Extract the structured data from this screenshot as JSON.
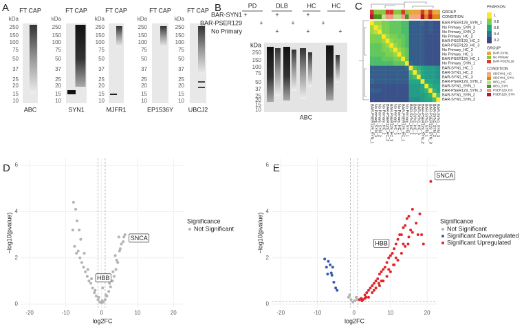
{
  "panel_a": {
    "letter": "A",
    "kda": "kDa",
    "header": "FT CAP",
    "markers": [
      250,
      150,
      100,
      75,
      50,
      37,
      25,
      20,
      15,
      10
    ],
    "blots": [
      "ABC",
      "SYN1",
      "MJFR1",
      "EP1536Y",
      "UBCJ2"
    ]
  },
  "panel_b": {
    "letter": "B",
    "groups": [
      "PD",
      "DLB",
      "HC",
      "HC"
    ],
    "rows": [
      {
        "label": "BAR-SYN1",
        "marks": [
          "+",
          null,
          "+",
          null,
          "+",
          null,
          null
        ]
      },
      {
        "label": "BAR-PSER129",
        "marks": [
          null,
          "+",
          null,
          "+",
          null,
          "+",
          null
        ]
      },
      {
        "label": "No Primary",
        "marks": [
          null,
          null,
          "+",
          null,
          "+",
          null,
          "+"
        ]
      }
    ],
    "kda": "kDa",
    "markers": [
      250,
      150,
      100,
      75,
      50,
      37,
      25,
      20,
      15,
      10
    ],
    "label": "ABC"
  },
  "panel_c": {
    "letter": "C",
    "type": "heatmap",
    "group_title": "GROUP",
    "condition_title": "CONDITION",
    "legend_title": "PEARSON",
    "colorbar": {
      "ticks": [
        1,
        0.8,
        0.6,
        0.4,
        0.2
      ],
      "colors": [
        "#fde725",
        "#7ad151",
        "#22a884",
        "#2a788e",
        "#414487"
      ]
    },
    "groups": [
      {
        "name": "BAR-SYN1",
        "color": "#e8a838"
      },
      {
        "name": "No Primary",
        "color": "#8cc63f"
      },
      {
        "name": "BAR-PSER129",
        "color": "#d8392b"
      }
    ],
    "conditions": [
      {
        "name": "SDSYN1_HC",
        "color": "#f4a582"
      },
      {
        "name": "SDSYN1_SYN",
        "color": "#e08214"
      },
      {
        "name": "NEG_HC",
        "color": "#b8e186"
      },
      {
        "name": "NEG_SYN",
        "color": "#4d9221"
      },
      {
        "name": "PSER129_HC",
        "color": "#f1948a"
      },
      {
        "name": "PSER129_SYN",
        "color": "#b2182b"
      }
    ],
    "samples": [
      {
        "label": "BAR-PSER129_SYN_1",
        "group": "BAR-PSER129",
        "condition": "PSER129_SYN"
      },
      {
        "label": "No Primary_SYN_3",
        "group": "No Primary",
        "condition": "NEG_SYN"
      },
      {
        "label": "No Primary_SYN_2",
        "group": "No Primary",
        "condition": "NEG_SYN"
      },
      {
        "label": "No Primary_HC_2",
        "group": "No Primary",
        "condition": "NEG_HC"
      },
      {
        "label": "BAR-PSER129_HC_2",
        "group": "BAR-PSER129",
        "condition": "PSER129_HC"
      },
      {
        "label": "BAR-PSER129_HC_3",
        "group": "BAR-PSER129",
        "condition": "PSER129_HC"
      },
      {
        "label": "No Primary_HC_3",
        "group": "No Primary",
        "condition": "NEG_HC"
      },
      {
        "label": "No Primary_HC_1",
        "group": "No Primary",
        "condition": "NEG_HC"
      },
      {
        "label": "BAR-PSER129_HC_1",
        "group": "BAR-PSER129",
        "condition": "PSER129_HC"
      },
      {
        "label": "No Primary_SYN_1",
        "group": "No Primary",
        "condition": "NEG_SYN"
      },
      {
        "label": "BAR-SYN1_HC_1",
        "group": "BAR-SYN1",
        "condition": "SDSYN1_HC"
      },
      {
        "label": "BAR-SYN1_HC_2",
        "group": "BAR-SYN1",
        "condition": "SDSYN1_HC"
      },
      {
        "label": "BAR-SYN1_HC_3",
        "group": "BAR-SYN1",
        "condition": "SDSYN1_HC"
      },
      {
        "label": "BAR-PSER129_SYN_2",
        "group": "BAR-PSER129",
        "condition": "PSER129_SYN"
      },
      {
        "label": "BAR-SYN1_SYN_1",
        "group": "BAR-SYN1",
        "condition": "SDSYN1_SYN"
      },
      {
        "label": "BAR-PSER129_SYN_3",
        "group": "BAR-PSER129",
        "condition": "PSER129_SYN"
      },
      {
        "label": "BAR-SYN1_SYN_2",
        "group": "BAR-SYN1",
        "condition": "SDSYN1_SYN"
      },
      {
        "label": "BAR-SYN1_SYN_3",
        "group": "BAR-SYN1",
        "condition": "SDSYN1_SYN"
      }
    ],
    "matrix": [
      [
        1,
        0.85,
        0.85,
        0.8,
        0.8,
        0.75,
        0.75,
        0.75,
        0.7,
        0.7,
        0.3,
        0.3,
        0.3,
        0.35,
        0.25,
        0.3,
        0.25,
        0.25
      ],
      [
        0.85,
        1,
        0.9,
        0.8,
        0.8,
        0.75,
        0.75,
        0.75,
        0.7,
        0.7,
        0.3,
        0.3,
        0.3,
        0.3,
        0.25,
        0.3,
        0.25,
        0.25
      ],
      [
        0.85,
        0.9,
        1,
        0.8,
        0.8,
        0.75,
        0.75,
        0.75,
        0.7,
        0.7,
        0.3,
        0.3,
        0.3,
        0.3,
        0.25,
        0.3,
        0.25,
        0.25
      ],
      [
        0.8,
        0.8,
        0.8,
        1,
        0.85,
        0.8,
        0.8,
        0.75,
        0.75,
        0.7,
        0.3,
        0.3,
        0.3,
        0.3,
        0.25,
        0.25,
        0.25,
        0.25
      ],
      [
        0.8,
        0.8,
        0.8,
        0.85,
        1,
        0.85,
        0.8,
        0.8,
        0.75,
        0.7,
        0.3,
        0.3,
        0.3,
        0.3,
        0.25,
        0.25,
        0.25,
        0.25
      ],
      [
        0.75,
        0.75,
        0.75,
        0.8,
        0.85,
        1,
        0.85,
        0.8,
        0.75,
        0.7,
        0.3,
        0.3,
        0.3,
        0.3,
        0.25,
        0.25,
        0.25,
        0.25
      ],
      [
        0.75,
        0.75,
        0.75,
        0.8,
        0.8,
        0.85,
        1,
        0.85,
        0.8,
        0.75,
        0.3,
        0.3,
        0.3,
        0.3,
        0.25,
        0.25,
        0.25,
        0.25
      ],
      [
        0.75,
        0.75,
        0.75,
        0.75,
        0.8,
        0.8,
        0.85,
        1,
        0.8,
        0.75,
        0.3,
        0.3,
        0.3,
        0.3,
        0.25,
        0.25,
        0.25,
        0.25
      ],
      [
        0.7,
        0.7,
        0.7,
        0.75,
        0.75,
        0.75,
        0.8,
        0.8,
        1,
        0.75,
        0.3,
        0.3,
        0.3,
        0.3,
        0.25,
        0.25,
        0.25,
        0.25
      ],
      [
        0.7,
        0.7,
        0.7,
        0.7,
        0.7,
        0.7,
        0.75,
        0.75,
        0.75,
        1,
        0.35,
        0.3,
        0.3,
        0.3,
        0.25,
        0.25,
        0.25,
        0.25
      ],
      [
        0.3,
        0.3,
        0.3,
        0.3,
        0.3,
        0.3,
        0.3,
        0.3,
        0.3,
        0.35,
        1,
        0.7,
        0.65,
        0.6,
        0.55,
        0.55,
        0.55,
        0.5
      ],
      [
        0.3,
        0.3,
        0.3,
        0.3,
        0.3,
        0.3,
        0.3,
        0.3,
        0.3,
        0.3,
        0.7,
        1,
        0.7,
        0.6,
        0.55,
        0.55,
        0.55,
        0.5
      ],
      [
        0.3,
        0.3,
        0.3,
        0.3,
        0.3,
        0.3,
        0.3,
        0.3,
        0.3,
        0.3,
        0.65,
        0.7,
        1,
        0.6,
        0.55,
        0.55,
        0.55,
        0.5
      ],
      [
        0.35,
        0.3,
        0.3,
        0.3,
        0.3,
        0.3,
        0.3,
        0.3,
        0.3,
        0.3,
        0.6,
        0.6,
        0.6,
        1,
        0.6,
        0.6,
        0.55,
        0.55
      ],
      [
        0.25,
        0.25,
        0.25,
        0.25,
        0.25,
        0.25,
        0.25,
        0.25,
        0.25,
        0.25,
        0.55,
        0.55,
        0.55,
        0.6,
        1,
        0.65,
        0.6,
        0.6
      ],
      [
        0.3,
        0.3,
        0.3,
        0.25,
        0.25,
        0.25,
        0.25,
        0.25,
        0.25,
        0.25,
        0.55,
        0.55,
        0.55,
        0.6,
        0.65,
        1,
        0.65,
        0.6
      ],
      [
        0.25,
        0.25,
        0.25,
        0.25,
        0.25,
        0.25,
        0.25,
        0.25,
        0.25,
        0.25,
        0.55,
        0.55,
        0.55,
        0.55,
        0.6,
        0.65,
        1,
        0.7
      ],
      [
        0.25,
        0.25,
        0.25,
        0.25,
        0.25,
        0.25,
        0.25,
        0.25,
        0.25,
        0.25,
        0.5,
        0.5,
        0.5,
        0.55,
        0.6,
        0.6,
        0.7,
        1
      ]
    ]
  },
  "chart_data": [
    {
      "type": "scatter",
      "letter": "D",
      "x_label": "log2FC",
      "y_label": "−log10(pvalue)",
      "xlim": [
        -22.5,
        23
      ],
      "ylim": [
        -0.15,
        6.3
      ],
      "xticks": [
        -20,
        -10,
        0,
        10,
        20
      ],
      "yticks": [
        0,
        2,
        4,
        6
      ],
      "grid": true,
      "thresholds": {
        "x": [
          -1,
          1
        ]
      },
      "legend_title": "Significance",
      "series": [
        {
          "name": "Not Significant",
          "color": "#b3b3b3",
          "x": [
            -8,
            -7.5,
            -7,
            -6.5,
            -6,
            -5.5,
            -5,
            -4.5,
            -4,
            -3.5,
            -3,
            -2.5,
            -2,
            -1.5,
            -1,
            -0.5,
            0,
            0.5,
            1,
            1.5,
            2,
            2.5,
            3,
            3.5,
            4,
            4.5,
            5,
            5.5,
            6,
            6.5,
            -7.8,
            -6.2,
            -5.8,
            -4.8,
            -3.8,
            -2.8,
            -1.8,
            -0.8,
            0.2,
            1.2,
            2.2,
            3.2,
            4.2,
            5.2,
            6.2,
            -6.8,
            -7.2,
            3.8,
            4.8,
            0.3
          ],
          "y": [
            3.2,
            2.5,
            2.2,
            2.3,
            2.0,
            1.8,
            1.6,
            1.4,
            1.2,
            1.0,
            0.9,
            0.7,
            0.5,
            0.35,
            0.2,
            0.1,
            0.05,
            0.1,
            0.2,
            0.35,
            0.55,
            0.75,
            1.0,
            1.2,
            1.5,
            1.8,
            2.3,
            2.6,
            2.7,
            3.0,
            4.4,
            3.2,
            2.8,
            2.2,
            1.5,
            1.1,
            0.6,
            0.3,
            0.15,
            0.4,
            0.9,
            1.4,
            1.9,
            2.4,
            2.9,
            3.6,
            4.1,
            2.1,
            2.9,
            0.7
          ]
        }
      ],
      "annotations": [
        {
          "text": "SNCA",
          "x": 6.5,
          "y": 2.6
        },
        {
          "text": "HBB",
          "x": 0.5,
          "y": 0.7
        }
      ]
    },
    {
      "type": "scatter",
      "letter": "E",
      "x_label": "log2FC",
      "y_label": "−log10(pvalue)",
      "xlim": [
        -22.5,
        22.8
      ],
      "ylim": [
        -0.15,
        6.3
      ],
      "xticks": [
        -20,
        -10,
        0,
        10,
        20
      ],
      "yticks": [
        0,
        2,
        4,
        6
      ],
      "grid": true,
      "thresholds": {
        "x": [
          -1,
          1
        ],
        "y": 0.1
      },
      "legend_title": "Significance",
      "series": [
        {
          "name": "Not Significant",
          "color": "#b3b3b3",
          "x": [
            -1.5,
            -0.8,
            -0.3,
            0.2,
            0.6,
            -1.2,
            0.9
          ],
          "y": [
            0.3,
            0.2,
            0.1,
            0.15,
            0.3,
            0.4,
            0.2
          ]
        },
        {
          "name": "Significant Downregulated",
          "color": "#3a5ba8",
          "x": [
            -8,
            -7.5,
            -7,
            -6.5,
            -6.2,
            -5.8,
            -5.5,
            -5,
            -4.6,
            -7.2,
            -6
          ],
          "y": [
            1.95,
            1.6,
            1.85,
            1.7,
            1.35,
            1.6,
            0.95,
            0.7,
            0.6,
            1.3,
            1.25
          ]
        },
        {
          "name": "Significant Upregulated",
          "color": "#e0262b",
          "x": [
            1.5,
            2,
            2.5,
            3,
            3.5,
            4,
            4.5,
            5,
            5.5,
            6,
            6.5,
            7,
            7.5,
            8,
            8.5,
            9,
            9.5,
            10,
            10.5,
            11,
            11.5,
            12,
            12.5,
            13,
            13.5,
            14,
            14.5,
            15,
            15.5,
            16,
            17,
            18,
            19,
            21,
            4,
            5,
            6,
            7,
            8,
            9,
            10,
            11,
            12,
            13,
            14,
            15,
            16,
            3,
            5.5,
            7.5,
            9.5,
            11.5,
            13.5,
            17.5,
            2.2,
            3.3,
            6.8,
            10.8,
            14.8,
            18.5
          ],
          "y": [
            0.2,
            0.25,
            0.2,
            0.4,
            0.5,
            0.6,
            0.7,
            0.8,
            0.9,
            1.0,
            1.1,
            1.3,
            1.4,
            1.5,
            1.6,
            1.8,
            2.0,
            2.1,
            2.2,
            2.4,
            2.6,
            2.8,
            3.0,
            3.0,
            3.3,
            3.4,
            3.7,
            3.8,
            3.2,
            4.1,
            3.5,
            3.9,
            2.6,
            5.3,
            0.3,
            0.5,
            0.7,
            0.8,
            1.0,
            1.2,
            1.4,
            1.7,
            1.9,
            2.2,
            2.5,
            2.9,
            3.1,
            0.25,
            0.6,
            1.0,
            1.5,
            2.0,
            2.6,
            3.0,
            0.15,
            0.3,
            0.9,
            1.7,
            2.6,
            3.0
          ]
        }
      ],
      "annotations": [
        {
          "text": "SNCA",
          "x": 21,
          "y": 5.3
        },
        {
          "text": "HBB",
          "x": 7.5,
          "y": 2.2
        }
      ]
    }
  ]
}
